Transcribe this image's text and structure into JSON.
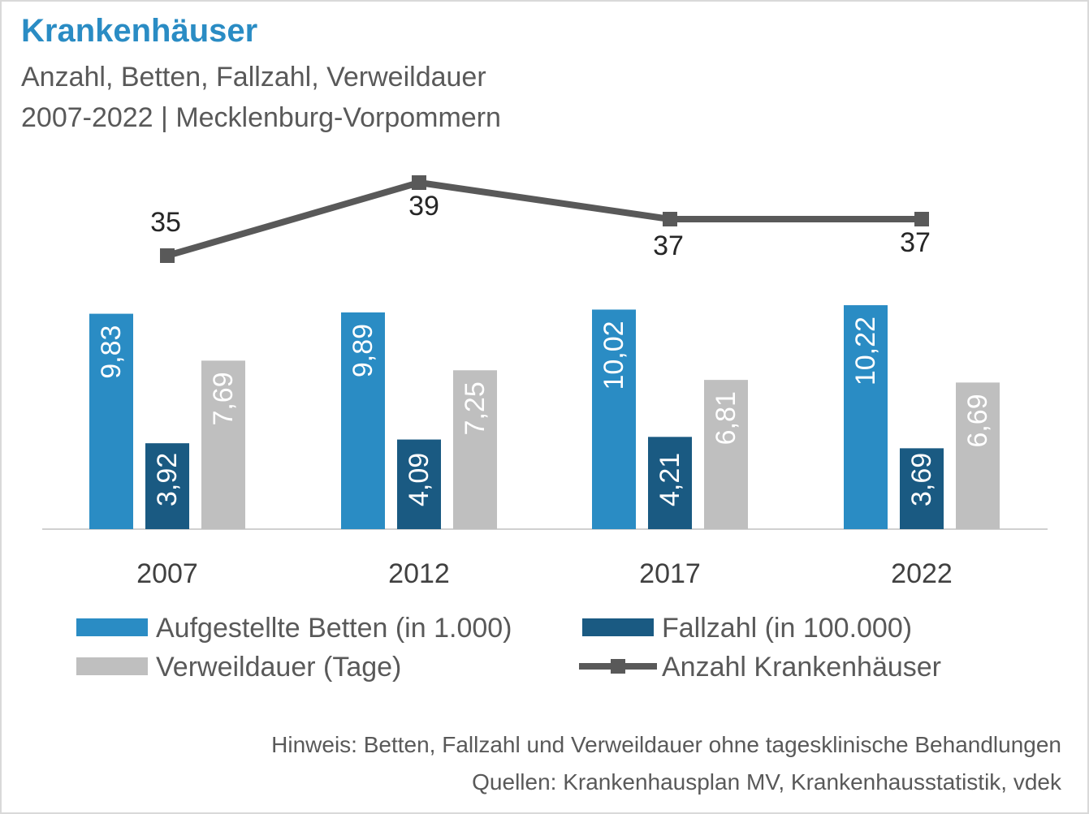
{
  "header": {
    "title": "Krankenhäuser",
    "subtitle_line1": "Anzahl, Betten, Fallzahl, Verweildauer",
    "subtitle_line2": "2007-2022 | Mecklenburg-Vorpommern"
  },
  "footer": {
    "note": "Hinweis: Betten, Fallzahl und Verweildauer ohne tagesklinische Behandlungen",
    "sources": "Quellen: Krankenhausplan MV, Krankenhausstatistik, vdek"
  },
  "chart_data": {
    "type": "bar",
    "title": "Krankenhäuser",
    "subtitle": "Anzahl, Betten, Fallzahl, Verweildauer | 2007-2022 | Mecklenburg-Vorpommern",
    "categories": [
      "2007",
      "2012",
      "2017",
      "2022"
    ],
    "series": [
      {
        "name": "Aufgestellte Betten (in 1.000)",
        "type": "bar",
        "color": "#2a8cc4",
        "values": [
          9.83,
          9.89,
          10.02,
          10.22
        ],
        "labels": [
          "9,83",
          "9,89",
          "10,02",
          "10,22"
        ]
      },
      {
        "name": "Fallzahl (in 100.000)",
        "type": "bar",
        "color": "#1a5a82",
        "values": [
          3.92,
          4.09,
          4.21,
          3.69
        ],
        "labels": [
          "3,92",
          "4,09",
          "4,21",
          "3,69"
        ]
      },
      {
        "name": "Verweildauer (Tage)",
        "type": "bar",
        "color": "#bfbfbf",
        "values": [
          7.69,
          7.25,
          6.81,
          6.69
        ],
        "labels": [
          "7,69",
          "7,25",
          "6,81",
          "6,69"
        ]
      },
      {
        "name": "Anzahl Krankenhäuser",
        "type": "line",
        "color": "#595959",
        "values": [
          35,
          39,
          37,
          37
        ],
        "labels": [
          "35",
          "39",
          "37",
          "37"
        ]
      }
    ],
    "grid": false,
    "legend_position": "bottom"
  }
}
